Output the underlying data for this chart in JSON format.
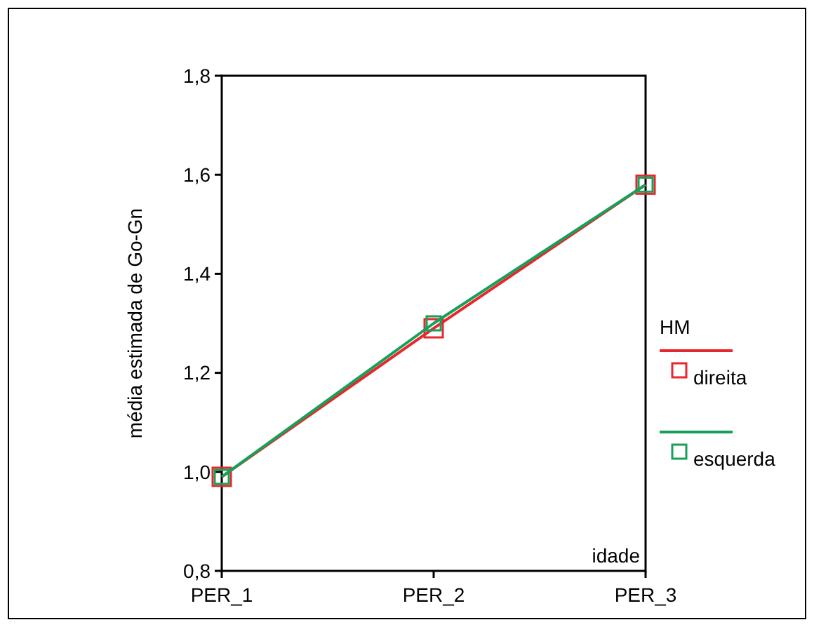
{
  "chart_data": {
    "type": "line",
    "xlabel": "idade",
    "ylabel": "média estimada de Go-Gn",
    "legend_title": "HM",
    "categories": [
      "PER_1",
      "PER_2",
      "PER_3"
    ],
    "series": [
      {
        "name": "direita",
        "color": "#e8262c",
        "values": [
          0.99,
          1.29,
          1.58
        ]
      },
      {
        "name": "esquerda",
        "color": "#16a05a",
        "values": [
          0.99,
          1.3,
          1.58
        ]
      }
    ],
    "ylim": [
      0.8,
      1.8
    ],
    "yticks": [
      {
        "value": 0.8,
        "label": "0,8"
      },
      {
        "value": 1.0,
        "label": "1,0"
      },
      {
        "value": 1.2,
        "label": "1,2"
      },
      {
        "value": 1.4,
        "label": "1,4"
      },
      {
        "value": 1.6,
        "label": "1,6"
      },
      {
        "value": 1.8,
        "label": "1,8"
      }
    ],
    "legend": "right",
    "marker": "square",
    "line_style": "solid",
    "grid": false
  }
}
